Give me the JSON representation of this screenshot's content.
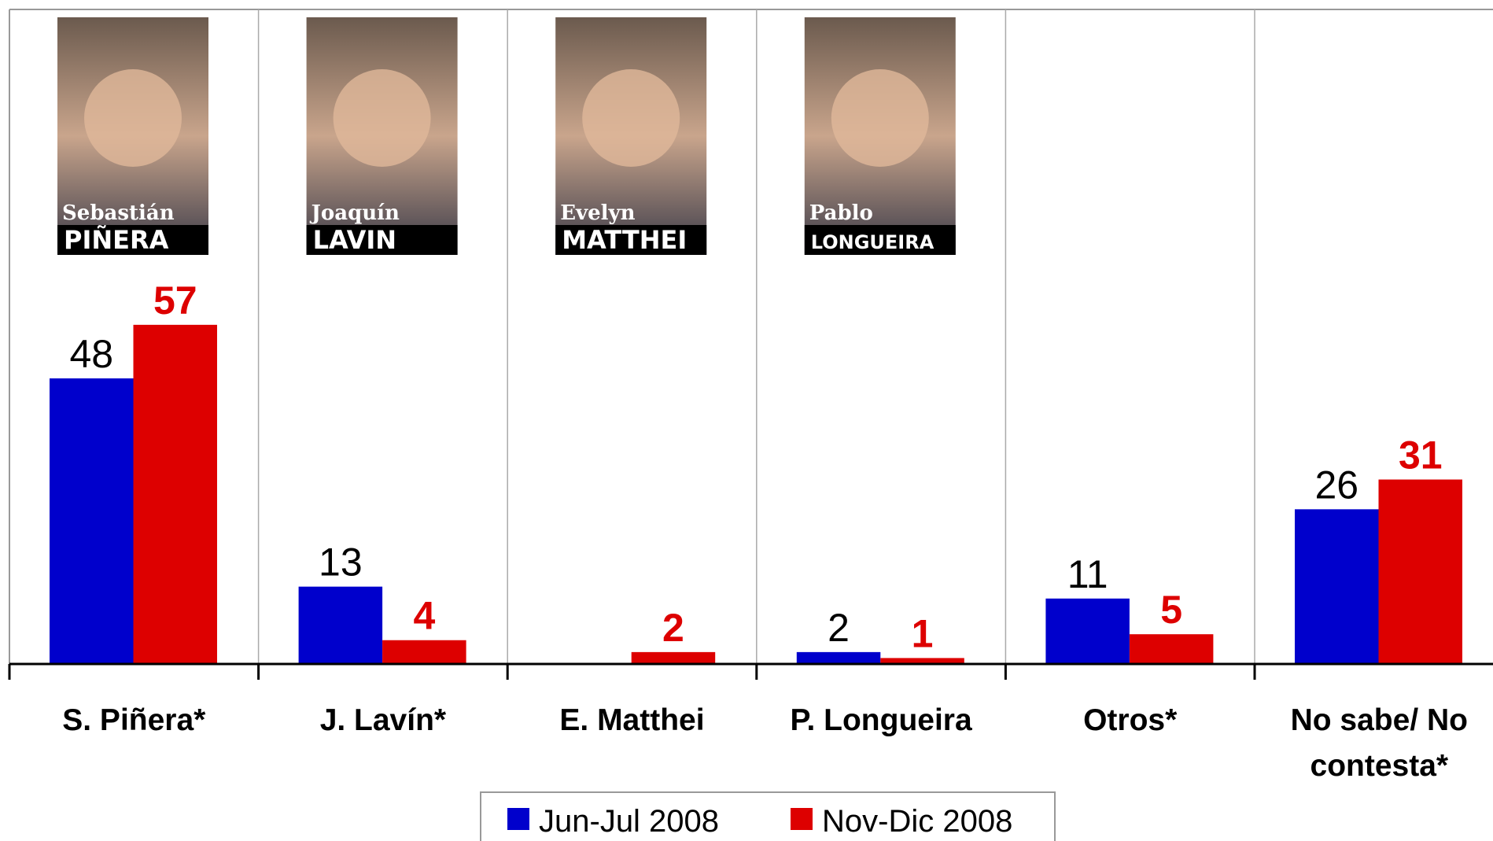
{
  "chart_data": {
    "type": "bar",
    "categories": [
      "S. Piñera*",
      "J. Lavín*",
      "E. Matthei",
      "P. Longueira",
      "Otros*",
      "No sabe/ No contesta*"
    ],
    "series": [
      {
        "name": "Jun-Jul 2008",
        "color": "#0000cc",
        "values": [
          48,
          13,
          null,
          2,
          11,
          26
        ]
      },
      {
        "name": "Nov-Dic 2008",
        "color": "#dd0000",
        "values": [
          57,
          4,
          2,
          1,
          5,
          31
        ]
      }
    ],
    "ylim": [
      0,
      110
    ],
    "photos": [
      {
        "first": "Sebastián",
        "last": "PIÑERA"
      },
      {
        "first": "Joaquín",
        "last": "LAVIN"
      },
      {
        "first": "Evelyn",
        "last": "MATTHEI"
      },
      {
        "first": "Pablo",
        "last": "LONGUEIRA"
      }
    ],
    "legend": "bottom"
  }
}
